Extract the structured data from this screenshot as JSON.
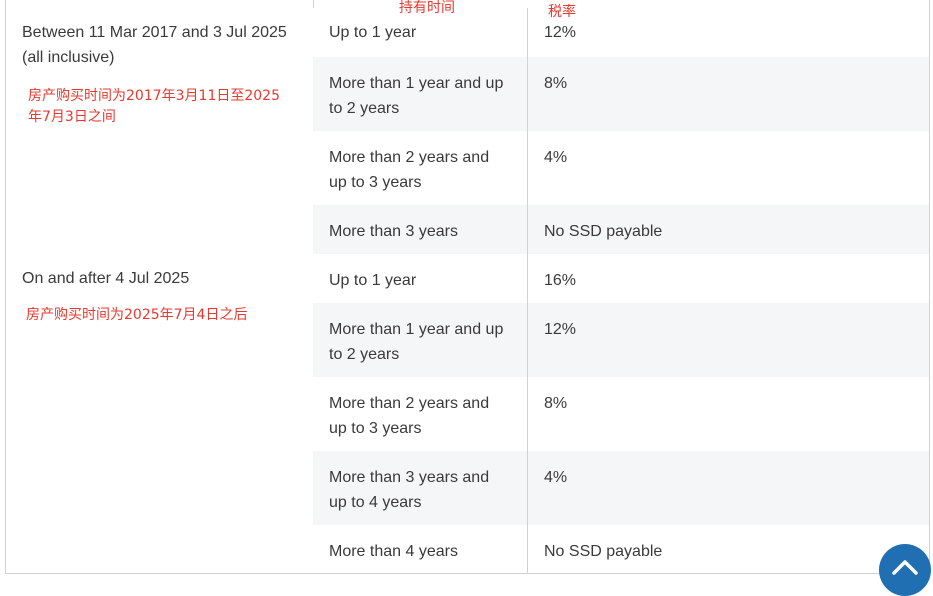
{
  "header_annotations": {
    "holding_period": "持有时间",
    "tax_rate": "税率"
  },
  "groups": [
    {
      "label": "Between 11 Mar 2017 and 3 Jul 2025 (all inclusive)",
      "annotation": "房产购买时间为2017年3月11日至2025年7月3日之间",
      "rows": [
        {
          "duration": "Up to 1 year",
          "rate": "12%"
        },
        {
          "duration": "More than 1 year and up to 2 years",
          "rate": "8%"
        },
        {
          "duration": "More than 2 years and up to 3 years",
          "rate": "4%"
        },
        {
          "duration": "More than 3 years",
          "rate": "No SSD payable"
        }
      ]
    },
    {
      "label": "On and after 4 Jul 2025",
      "annotation": "房产购买时间为2025年7月4日之后",
      "rows": [
        {
          "duration": "Up to 1 year",
          "rate": "16%"
        },
        {
          "duration": "More than 1 year and up to 2 years",
          "rate": "12%"
        },
        {
          "duration": "More than 2 years and up to 3 years",
          "rate": "8%"
        },
        {
          "duration": "More than 3 years and up to 4 years",
          "rate": "4%"
        },
        {
          "duration": "More than 4 years",
          "rate": "No SSD payable"
        }
      ]
    }
  ],
  "scroll_top_icon": "chevron-up-icon",
  "colors": {
    "annotation": "#e8382f",
    "row_shade": "#f5f6f8",
    "border": "#cfd3d8",
    "scroll_button": "#1f6fb2"
  }
}
